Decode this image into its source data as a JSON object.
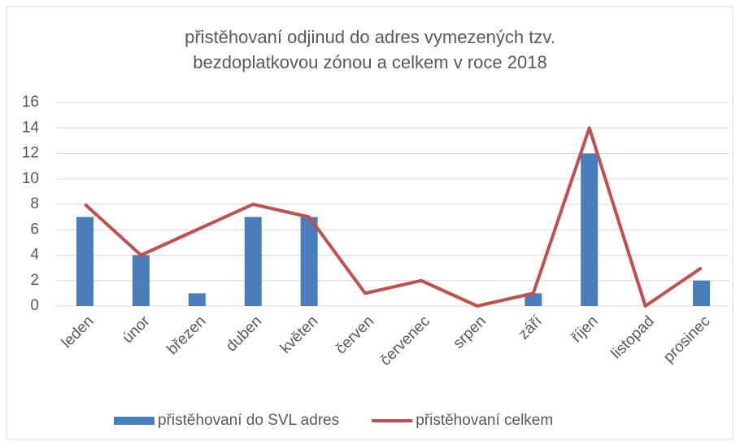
{
  "chart_data": {
    "type": "bar",
    "title": "přistěhovaní odjinud do adres vymezených tzv. bezdoplatkovou zónou a celkem v roce 2018",
    "categories": [
      "leden",
      "únor",
      "březen",
      "duben",
      "květen",
      "červen",
      "červenec",
      "srpen",
      "září",
      "říjen",
      "listopad",
      "prosinec"
    ],
    "series": [
      {
        "name": "přistěhovaní do SVL adres",
        "type": "bar",
        "color": "#4a7ebb",
        "values": [
          7,
          4,
          1,
          7,
          7,
          0,
          0,
          0,
          1,
          12,
          0,
          2
        ]
      },
      {
        "name": "přistěhovaní celkem",
        "type": "line",
        "color": "#c0504d",
        "values": [
          8,
          4,
          6,
          8,
          7,
          1,
          2,
          0,
          1,
          14,
          0,
          3
        ]
      }
    ],
    "ylim": [
      0,
      16
    ],
    "yticks": [
      0,
      2,
      4,
      6,
      8,
      10,
      12,
      14,
      16
    ],
    "grid": true,
    "legend": "bottom"
  }
}
